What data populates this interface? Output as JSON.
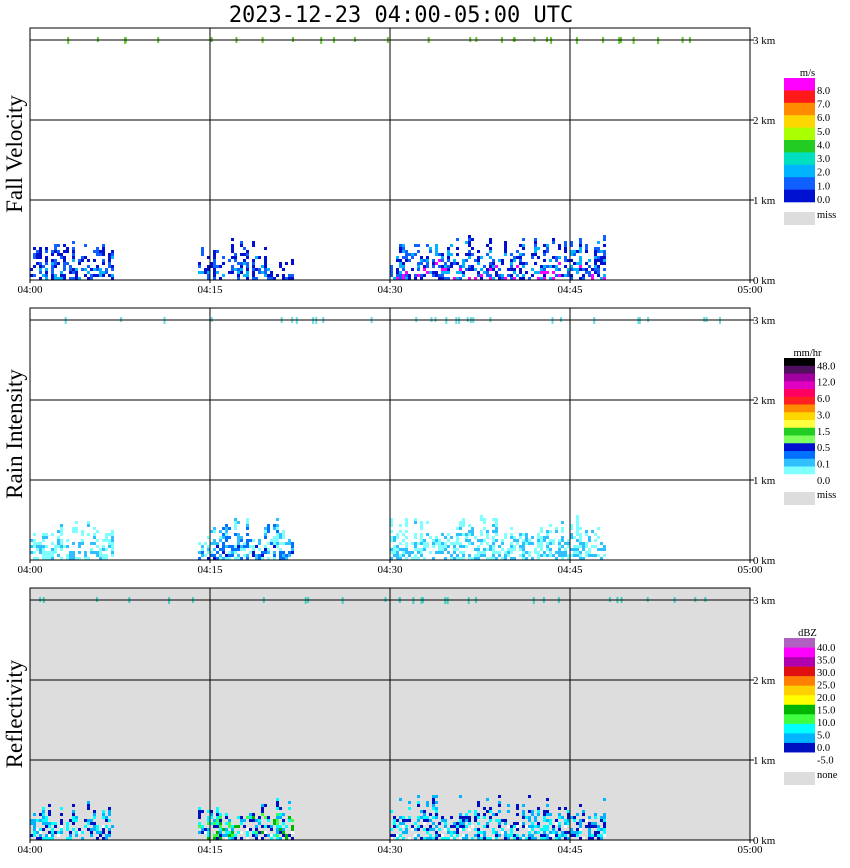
{
  "title": "2023-12-23  04:00-05:00 UTC",
  "chart_data": [
    {
      "type": "heatmap",
      "title": "Fall Velocity",
      "x_ticks": [
        "04:00",
        "04:15",
        "04:30",
        "04:45",
        "05:00"
      ],
      "y_ticks": [
        "0 km",
        "1 km",
        "2 km",
        "3 km"
      ],
      "xlim": [
        "04:00",
        "05:00"
      ],
      "ylim_km": [
        0,
        3
      ],
      "grid": true,
      "background": "#ffffff",
      "colorbar": {
        "unit": "m/s",
        "labels": [
          "8.0",
          "7.0",
          "6.0",
          "5.0",
          "4.0",
          "3.0",
          "2.0",
          "1.0",
          "0.0"
        ],
        "colors": [
          "#ff00ff",
          "#ff1a1a",
          "#ff8c00",
          "#ffd700",
          "#aaff00",
          "#22cc22",
          "#00e0c0",
          "#00b4ff",
          "#1060ff",
          "#0010d0"
        ],
        "missing_label": "miss",
        "missing_color": "#dddddd"
      },
      "echoes": [
        {
          "x_start": "04:00",
          "x_end": "04:07",
          "top_km": 0.5,
          "colors": [
            "#0010d0",
            "#1060ff",
            "#00b4ff"
          ]
        },
        {
          "x_start": "04:14",
          "x_end": "04:20",
          "top_km": 0.55,
          "colors": [
            "#0010d0",
            "#1060ff",
            "#00b4ff"
          ]
        },
        {
          "x_start": "04:20",
          "x_end": "04:22",
          "top_km": 0.3,
          "colors": [
            "#0010d0",
            "#1060ff"
          ]
        },
        {
          "x_start": "04:30",
          "x_end": "04:48",
          "top_km": 0.6,
          "colors": [
            "#0010d0",
            "#1060ff",
            "#00b4ff",
            "#ff00ff"
          ]
        }
      ],
      "upper_marks_color": "#66cc33"
    },
    {
      "type": "heatmap",
      "title": "Rain Intensity",
      "x_ticks": [
        "04:00",
        "04:15",
        "04:30",
        "04:45",
        "05:00"
      ],
      "y_ticks": [
        "0 km",
        "1 km",
        "2 km",
        "3 km"
      ],
      "xlim": [
        "04:00",
        "05:00"
      ],
      "ylim_km": [
        0,
        3
      ],
      "grid": true,
      "background": "#ffffff",
      "colorbar": {
        "unit": "mm/hr",
        "labels": [
          "48.0",
          "12.0",
          "6.0",
          "3.0",
          "1.5",
          "0.5",
          "0.1",
          "0.0"
        ],
        "colors": [
          "#000000",
          "#501060",
          "#a000a0",
          "#e000c0",
          "#ff0060",
          "#ff2020",
          "#ff8c00",
          "#ffd700",
          "#ffff40",
          "#22cc22",
          "#80ff60",
          "#0010d0",
          "#0070ff",
          "#30c0ff",
          "#80ffff",
          "#ffffff"
        ],
        "missing_label": "miss",
        "missing_color": "#dddddd"
      },
      "echoes": [
        {
          "x_start": "04:00",
          "x_end": "04:07",
          "top_km": 0.5,
          "colors": [
            "#80ffff",
            "#30c0ff"
          ]
        },
        {
          "x_start": "04:14",
          "x_end": "04:22",
          "top_km": 0.55,
          "colors": [
            "#80ffff",
            "#30c0ff",
            "#0070ff",
            "#0010d0"
          ]
        },
        {
          "x_start": "04:30",
          "x_end": "04:48",
          "top_km": 0.6,
          "colors": [
            "#80ffff",
            "#30c0ff"
          ]
        }
      ],
      "upper_marks_color": "#66e0e0"
    },
    {
      "type": "heatmap",
      "title": "Reflectivity",
      "x_ticks": [
        "04:00",
        "04:15",
        "04:30",
        "04:45",
        "05:00"
      ],
      "y_ticks": [
        "0 km",
        "1 km",
        "2 km",
        "3 km"
      ],
      "xlim": [
        "04:00",
        "05:00"
      ],
      "ylim_km": [
        0,
        3
      ],
      "grid": true,
      "background": "#dddddd",
      "colorbar": {
        "unit": "dBZ",
        "labels": [
          "40.0",
          "35.0",
          "30.0",
          "25.0",
          "20.0",
          "15.0",
          "10.0",
          "5.0",
          "0.0",
          "-5.0"
        ],
        "colors": [
          "#b060c0",
          "#ff00ff",
          "#b000b0",
          "#e01010",
          "#ff8000",
          "#ffd000",
          "#ffff00",
          "#00b400",
          "#40ff40",
          "#00ffff",
          "#00b4ff",
          "#0010c0",
          "#ffffff"
        ],
        "missing_label": "none",
        "missing_color": "#dddddd"
      },
      "echoes": [
        {
          "x_start": "04:00",
          "x_end": "04:07",
          "top_km": 0.5,
          "colors": [
            "#0010c0",
            "#00b4ff",
            "#00ffff",
            "#ffffff"
          ]
        },
        {
          "x_start": "04:14",
          "x_end": "04:22",
          "top_km": 0.55,
          "colors": [
            "#0010c0",
            "#00b4ff",
            "#00ffff",
            "#40ff40",
            "#00b400",
            "#ffffff"
          ]
        },
        {
          "x_start": "04:30",
          "x_end": "04:48",
          "top_km": 0.6,
          "colors": [
            "#0010c0",
            "#00b4ff",
            "#00ffff",
            "#ffffff"
          ]
        }
      ],
      "upper_marks_color": "#40d0c0"
    }
  ]
}
